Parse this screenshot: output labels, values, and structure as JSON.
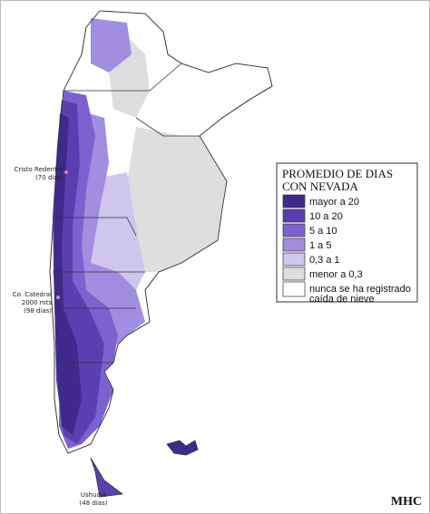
{
  "legend": {
    "title": [
      "PROMEDIO DE DIAS",
      "CON NEVADA"
    ],
    "items": [
      {
        "lines": [
          "mayor a 20"
        ],
        "color": "#3f2a8c"
      },
      {
        "lines": [
          "10 a 20"
        ],
        "color": "#5a3fb0"
      },
      {
        "lines": [
          "5 a 10"
        ],
        "color": "#7b62cf"
      },
      {
        "lines": [
          "1 a 5"
        ],
        "color": "#a08ee0"
      },
      {
        "lines": [
          "0,3 a 1"
        ],
        "color": "#cfc6ee"
      },
      {
        "lines": [
          "menor a 0,3"
        ],
        "color": "#dedede"
      },
      {
        "lines": [
          "nunca se ha registrado",
          "caída de nieve"
        ],
        "color": "#ffffff"
      }
    ]
  },
  "annotations": [
    {
      "lines": [
        "Cristo Redentor",
        "(70 días)"
      ]
    },
    {
      "lines": [
        "Co. Catedral",
        "2000 mts",
        "(98 días)"
      ]
    },
    {
      "lines": [
        "Ushuaia",
        "(48 días)"
      ]
    }
  ],
  "signature": "MHC"
}
